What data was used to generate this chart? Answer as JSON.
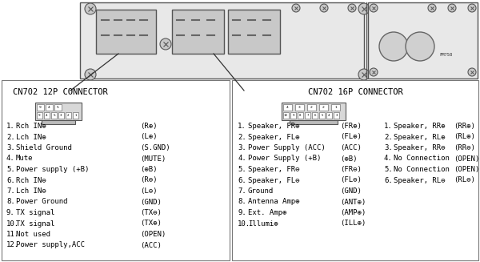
{
  "bg_color": "#ffffff",
  "text_color": "#000000",
  "left_panel_title": "CN702 12P CONNECTOR",
  "right_panel_title": "CN702 16P CONNECTOR",
  "left_items": [
    [
      "1.",
      "Rch IN⊕",
      "(R⊕)"
    ],
    [
      "2.",
      "Lch IN⊕",
      "(L⊕)"
    ],
    [
      "3.",
      "Shield Ground",
      "(S.GND)"
    ],
    [
      "4.",
      "Mute",
      "(MUTE)"
    ],
    [
      "5.",
      "Power supply (+B)",
      "(⊕B)"
    ],
    [
      "6.",
      "Rch IN⊖",
      "(R⊖)"
    ],
    [
      "7.",
      "Lch IN⊖",
      "(L⊖)"
    ],
    [
      "8.",
      "Power Ground",
      "(GND)"
    ],
    [
      "9.",
      "TX signal",
      "(TX⊖)"
    ],
    [
      "10.",
      "TX signal",
      "(TX⊕)"
    ],
    [
      "11.",
      "Not used",
      "(OPEN)"
    ],
    [
      "12.",
      "Power supply,ACC",
      "(ACC)"
    ]
  ],
  "mid_items": [
    [
      "1.",
      "Speaker, FR⊕",
      "(FR⊕)"
    ],
    [
      "2.",
      "Speaker, FL⊕",
      "(FL⊕)"
    ],
    [
      "3.",
      "Power Supply (ACC)",
      "(ACC)"
    ],
    [
      "4.",
      "Power Supply (+B)",
      "(⊕B)"
    ],
    [
      "5.",
      "Speaker, FR⊖",
      "(FR⊖)"
    ],
    [
      "6.",
      "Speaker, FL⊖",
      "(FL⊖)"
    ],
    [
      "7.",
      "Ground",
      "(GND)"
    ],
    [
      "8.",
      "Antenna Amp⊕",
      "(ANT⊕)"
    ],
    [
      "9.",
      "Ext. Amp⊕",
      "(AMP⊕)"
    ],
    [
      "10.",
      "Illumi⊕",
      "(ILL⊕)"
    ]
  ],
  "right_items": [
    [
      "1.",
      "Speaker, RR⊕",
      "(RR⊕)"
    ],
    [
      "2.",
      "Speaker, RL⊕",
      "(RL⊕)"
    ],
    [
      "3.",
      "Speaker, RR⊖",
      "(RR⊖)"
    ],
    [
      "4.",
      "No Connection",
      "(OPEN)"
    ],
    [
      "5.",
      "No Connection",
      "(OPEN)"
    ],
    [
      "6.",
      "Speaker, RL⊖",
      "(RL⊖)"
    ]
  ]
}
